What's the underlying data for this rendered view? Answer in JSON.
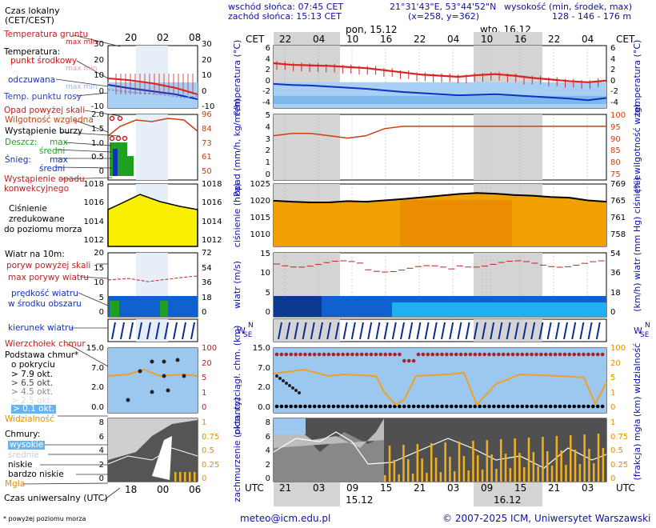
{
  "header": {
    "sunrise": "wschód słońca: 07:45 CET",
    "sunset": "zachód słońca: 15:13 CET",
    "coords": "21°31'43\"E, 53°44'52\"N",
    "grid": "(x=258, y=362)",
    "elevation_title": "wysokość (min, środek, max)",
    "elevation_values": "128 - 146 - 176 m",
    "cet_label": "CET",
    "days": [
      "pon, 15.12",
      "wto, 16.12"
    ],
    "cet_ticks": [
      "22",
      "04",
      "10",
      "16",
      "22",
      "04",
      "10",
      "16",
      "22",
      "04"
    ]
  },
  "legend": {
    "time_local": "Czas lokalny",
    "time_local2": "(CET/CEST)",
    "hours_top": [
      "20",
      "02",
      "08"
    ],
    "ground_temp": "Temperatura gruntu",
    "ground_temp_minmax": "max min",
    "temperature": "Temperatura:",
    "temp_mid": "punkt środkowy",
    "temp_mid_minmax": "max min",
    "feels": "odczuwana",
    "feels_minmax": "max min",
    "dew": "Temp. punktu rosy",
    "precip_over": "Opad powyżej skali",
    "humidity": "Wilgotność względna",
    "storm": "Wystąpienie burzy",
    "rain": "Deszcz:",
    "rain_max": "max",
    "rain_avg": "średni",
    "snow": "Śnieg:",
    "snow_max": "max",
    "snow_avg": "średni",
    "convective1": "Wystąpienie opadu",
    "convective2": "konwekcyjnego",
    "pressure1": "Ciśnienie",
    "pressure2": "zredukowane",
    "pressure3": "do poziomu morza",
    "wind_title": "Wiatr na 10m:",
    "gust_over": "poryw powyżej skali",
    "gust_max": "max porywy wiatru",
    "wind_speed1": "prędkość wiatru",
    "wind_speed2": "w środku obszaru",
    "wind_dir": "kierunek wiatru",
    "cloud_top": "Wierzchołek chmur",
    "cloud_base1": "Podstawa chmur*",
    "cloud_base2": "o pokryciu",
    "okt": [
      "> 7.9 okt.",
      "> 6.5 okt.",
      "> 4.5 okt.",
      "> 2.5 okt.",
      "> 0.1 okt."
    ],
    "visibility": "Widzialność",
    "clouds": "Chmury:",
    "cl_high": "wysokie",
    "cl_mid": "średnie",
    "cl_low": "niskie",
    "cl_vlow": "bardzo niskie",
    "fog": "Mgła",
    "utc_title": "Czas uniwersalny (UTC)",
    "hours_bottom": [
      "18",
      "00",
      "06"
    ],
    "footnote": "* powyżej poziomu morza"
  },
  "panels": {
    "temp": {
      "left_ticks": [
        "30",
        "20",
        "10",
        "0",
        "-10"
      ],
      "right_ticks": [
        "30",
        "20",
        "10",
        "0",
        "-10"
      ],
      "main_left": [
        "6",
        "4",
        "2",
        "0",
        "-2",
        "-4"
      ],
      "main_right": [
        "6",
        "4",
        "2",
        "0",
        "-2",
        "-4"
      ],
      "label": "temperatura (°C)"
    },
    "precip": {
      "left_ticks": [
        "2.0",
        "1.5",
        "1.0",
        "0.5",
        "0"
      ],
      "right_ticks": [
        "96",
        "84",
        "73",
        "61",
        "50"
      ],
      "main_left": [
        "5",
        "4",
        "3",
        "2",
        "1",
        "0"
      ],
      "main_right": [
        "100",
        "95",
        "90",
        "85",
        "80",
        "75"
      ],
      "label_left": "opad (mm/h, kg/m²/h)",
      "label_right": "(%) wilgotność wzgl."
    },
    "pressure": {
      "left_ticks": [
        "1018",
        "1016",
        "1014",
        "1012"
      ],
      "right_ticks": [
        "1018",
        "1016",
        "1014",
        "1012"
      ],
      "main_left": [
        "1025",
        "1020",
        "1015",
        "1010"
      ],
      "main_right": [
        "769",
        "765",
        "761",
        "758"
      ],
      "label_left": "ciśnienie (hPa)",
      "label_right": "(mm Hg) ciśnienie"
    },
    "wind": {
      "left_ticks": [
        "20",
        "15",
        "10",
        "5",
        "0"
      ],
      "right_ticks": [
        "72",
        "54",
        "36",
        "18",
        "0"
      ],
      "main_left": [
        "15",
        "10",
        "5",
        "0"
      ],
      "main_right": [
        "54",
        "36",
        "18",
        "0"
      ],
      "label_left": "wiatr (m/s)",
      "label_right": "(km/h) wiatr"
    },
    "winddir": {
      "compass": "N W E S"
    },
    "cloudbase": {
      "left_ticks": [
        "15.0",
        "7.0",
        "2.0",
        "0.0"
      ],
      "right_ticks": [
        "100",
        "20",
        "5",
        "1",
        "0"
      ],
      "main_left": [
        "15.0",
        "7.0",
        "2.0",
        "0.0"
      ],
      "main_right": [
        "100",
        "20",
        "5",
        "1",
        "0"
      ],
      "label_left": "pion. rozciągł. chm. (km)",
      "label_right": "(km) widzialność"
    },
    "clouds": {
      "left_ticks": [
        "8",
        "6",
        "4",
        "2",
        "0"
      ],
      "right_ticks": [
        "1",
        "0.75",
        "0.5",
        "0.25",
        "0"
      ],
      "main_left": [
        "8",
        "6",
        "4",
        "2",
        "0"
      ],
      "main_right": [
        "1",
        "0.75",
        "0.5",
        "0.25",
        "0"
      ],
      "label_left": "zachmurzenie (oktanty)",
      "label_right": "(frakcja) mgła"
    }
  },
  "footer": {
    "utc_label": "UTC",
    "utc_ticks": [
      "21",
      "03",
      "09",
      "15",
      "21",
      "03",
      "09",
      "15",
      "21",
      "03"
    ],
    "dates": [
      "15.12",
      "16.12"
    ],
    "email": "meteo@icm.edu.pl",
    "copyright": "© 2007-2025 ICM, Uniwersytet Warszawski"
  },
  "colors": {
    "grid_bg": "#d8d8d8",
    "night": "#e8e8e8",
    "blue_panel": "#9cc8f0",
    "temp_red": "#e02020",
    "dew_blue": "#1030c0",
    "humidity": "#c84010",
    "pressure_fill": "#e8a000",
    "fog": "#f0b020"
  },
  "chart_data": {
    "type": "line",
    "title": "",
    "x": [
      "21",
      "00",
      "03",
      "06",
      "09",
      "12",
      "15",
      "18",
      "21",
      "00",
      "03",
      "06",
      "09",
      "12",
      "15",
      "18",
      "21",
      "00",
      "03"
    ],
    "series": [
      {
        "name": "temperatura",
        "values": [
          3.5,
          3.2,
          3.1,
          3.0,
          2.8,
          2.6,
          2.2,
          1.8,
          1.4,
          1.2,
          1.0,
          1.3,
          1.5,
          1.2,
          0.8,
          0.5,
          0.2,
          0.0,
          0.3
        ]
      },
      {
        "name": "odczuwana",
        "values": [
          -0.3,
          -0.5,
          -0.6,
          -0.8,
          -1.0,
          -1.2,
          -1.5,
          -1.8,
          -2.0,
          -2.2,
          -2.4,
          -2.3,
          -2.2,
          -2.4,
          -2.6,
          -2.8,
          -3.0,
          -3.3,
          -2.9
        ]
      },
      {
        "name": "ciśnienie",
        "values": [
          1020.5,
          1020.2,
          1020.0,
          1020.0,
          1020.4,
          1020.2,
          1020.6,
          1021.0,
          1021.5,
          1022.0,
          1022.5,
          1022.8,
          1022.6,
          1022.2,
          1022.0,
          1021.6,
          1021.4,
          1020.6,
          1020.2
        ]
      },
      {
        "name": "wilgotność wzgl.",
        "values": [
          92,
          93,
          93,
          92,
          91,
          92,
          95,
          96,
          96,
          96,
          96,
          96,
          96,
          96,
          96,
          96,
          96,
          96,
          96
        ]
      }
    ],
    "ylim": [
      -4,
      6
    ]
  }
}
